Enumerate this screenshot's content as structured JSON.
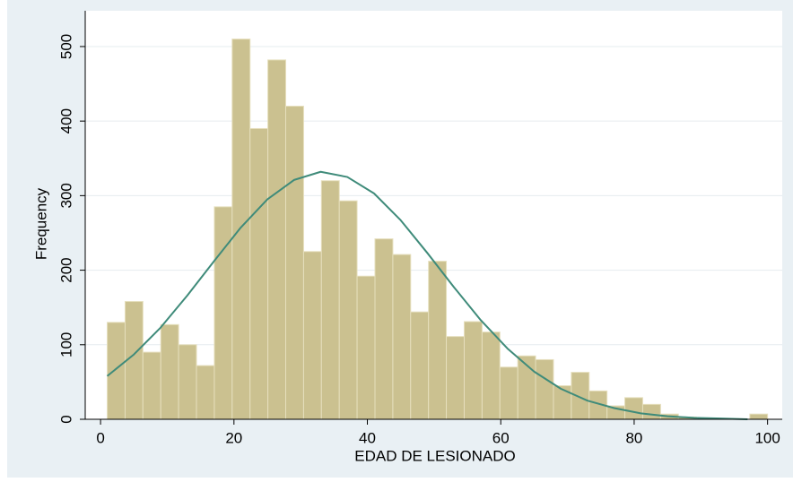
{
  "chart_data": {
    "type": "histogram",
    "x_label": "EDAD DE LESIONADO",
    "y_label": "Frequency",
    "bins": [
      1,
      3.68,
      6.35,
      9.03,
      11.7,
      14.38,
      17.06,
      19.73,
      22.41,
      25.08,
      27.76,
      30.44,
      33.11,
      35.79,
      38.46,
      41.14,
      43.82,
      46.49,
      49.17,
      51.84,
      54.52,
      57.2,
      59.87,
      62.55,
      65.22,
      67.9,
      70.58,
      73.25,
      75.93,
      78.6,
      81.28,
      83.96,
      86.63,
      89.31,
      91.98,
      94.66,
      97.34,
      100
    ],
    "values": [
      130,
      158,
      90,
      127,
      100,
      72,
      285,
      510,
      390,
      482,
      420,
      225,
      320,
      293,
      192,
      242,
      221,
      144,
      212,
      111,
      131,
      117,
      70,
      85,
      80,
      45,
      63,
      38,
      18,
      29,
      20,
      7,
      3,
      0,
      0,
      0,
      7
    ],
    "color": "#cbc190",
    "curve": {
      "color": "#3f8b7a",
      "x": [
        1,
        5,
        9,
        13,
        17,
        21,
        25,
        29,
        33,
        37,
        41,
        45,
        49,
        53,
        57,
        61,
        65,
        69,
        73,
        77,
        81,
        85,
        89,
        93,
        97
      ],
      "values": [
        58,
        87,
        123,
        166,
        212,
        257,
        295,
        321,
        332,
        325,
        303,
        267,
        223,
        177,
        133,
        95,
        64,
        41,
        25,
        15,
        8,
        4,
        2,
        1,
        0
      ]
    },
    "xlim": [
      -2.3,
      102.2
    ],
    "ylim": [
      0,
      548
    ],
    "xticks": [
      0,
      20,
      40,
      60,
      80,
      100
    ],
    "yticks": [
      0,
      100,
      200,
      300,
      400,
      500
    ],
    "grid": true
  }
}
